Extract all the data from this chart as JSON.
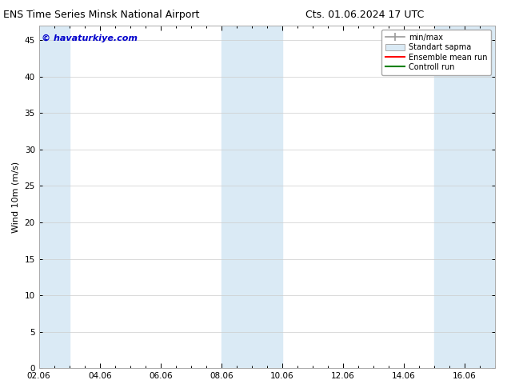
{
  "title_left": "ENS Time Series Minsk National Airport",
  "title_right": "Cts. 01.06.2024 17 UTC",
  "ylabel": "Wind 10m (m/s)",
  "watermark": "© havaturkiye.com",
  "ylim": [
    0,
    47
  ],
  "yticks": [
    0,
    5,
    10,
    15,
    20,
    25,
    30,
    35,
    40,
    45
  ],
  "xtick_labels": [
    "02.06",
    "04.06",
    "06.06",
    "08.06",
    "10.06",
    "12.06",
    "14.06",
    "16.06"
  ],
  "xtick_positions": [
    0,
    2,
    4,
    6,
    8,
    10,
    12,
    14
  ],
  "xlim": [
    0,
    15.0
  ],
  "shaded_bands": [
    {
      "x_start": 0.0,
      "x_end": 1.0
    },
    {
      "x_start": 6.0,
      "x_end": 8.0
    },
    {
      "x_start": 13.0,
      "x_end": 15.0
    }
  ],
  "band_color": "#daeaf5",
  "background_color": "#ffffff",
  "grid_color": "#cccccc",
  "legend_labels": [
    "min/max",
    "Standart sapma",
    "Ensemble mean run",
    "Controll run"
  ],
  "legend_line_color": "#999999",
  "legend_fill_color": "#daeaf5",
  "legend_red": "#ff0000",
  "legend_green": "#008000",
  "title_fontsize": 9,
  "axis_label_fontsize": 8,
  "tick_fontsize": 7.5,
  "watermark_color": "#0000cc",
  "watermark_fontsize": 8
}
